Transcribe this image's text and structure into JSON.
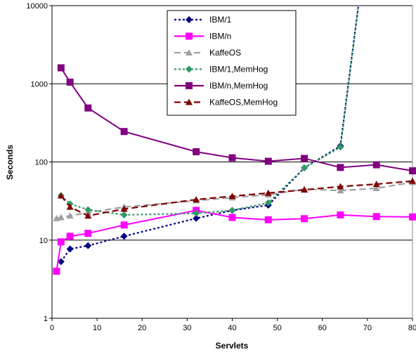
{
  "chart_data": {
    "type": "line",
    "xlabel": "Servlets",
    "ylabel": "Seconds",
    "xlim": [
      0,
      80
    ],
    "ylim": [
      1,
      10000
    ],
    "yscale": "log",
    "grid": "horizontal",
    "legend_position": "top-center",
    "x_ticks": [
      "0",
      "10",
      "20",
      "30",
      "40",
      "50",
      "60",
      "70",
      "80"
    ],
    "y_ticks": [
      "1",
      "10",
      "100",
      "1000",
      "10000"
    ],
    "y_tick_values": [
      1,
      10,
      100,
      1000,
      10000
    ],
    "x_tick_values": [
      0,
      10,
      20,
      30,
      40,
      50,
      60,
      70,
      80
    ],
    "series": [
      {
        "name": "IBM/1",
        "color": "#000080",
        "marker": "diamond",
        "dash": "dotted",
        "x": [
          2,
          4,
          8,
          16,
          32,
          40,
          48,
          56,
          64,
          68
        ],
        "y": [
          5.3,
          7.7,
          8.5,
          11.2,
          19,
          24,
          28,
          84,
          160,
          10000
        ]
      },
      {
        "name": "IBM/n",
        "color": "#ff00ff",
        "marker": "square",
        "dash": "solid",
        "x": [
          1,
          2,
          4,
          8,
          16,
          32,
          40,
          48,
          56,
          64,
          72,
          80
        ],
        "y": [
          4,
          9.5,
          11.2,
          12.2,
          15.6,
          24,
          19.5,
          18.2,
          18.8,
          21,
          20,
          19.8
        ]
      },
      {
        "name": "KaffeOS",
        "color": "#a0a0a0",
        "marker": "triangle",
        "dash": "dashed",
        "x": [
          1,
          2,
          4,
          8,
          16,
          32,
          40,
          48,
          56,
          64,
          72,
          80
        ],
        "y": [
          19,
          19.5,
          20.5,
          22.5,
          26.5,
          32,
          35,
          38,
          45,
          43,
          46,
          55
        ]
      },
      {
        "name": "IBM/1,MemHog",
        "color": "#339966",
        "marker": "diamond",
        "dash": "dotted",
        "x": [
          2,
          4,
          8,
          16,
          32,
          40,
          48,
          56,
          64,
          68
        ],
        "y": [
          37,
          29,
          24.5,
          21,
          22,
          24,
          30,
          84,
          155,
          10000
        ]
      },
      {
        "name": "IBM/n,MemHog",
        "color": "#800080",
        "marker": "square",
        "dash": "solid",
        "x": [
          2,
          4,
          8,
          16,
          32,
          40,
          48,
          56,
          64,
          72,
          80
        ],
        "y": [
          1600,
          1050,
          490,
          245,
          135,
          113,
          102,
          111,
          85,
          92,
          77
        ]
      },
      {
        "name": "KaffeOS,MemHog",
        "color": "#800000",
        "marker": "triangle",
        "dash": "dashed",
        "x": [
          2,
          4,
          8,
          16,
          32,
          40,
          48,
          56,
          64,
          72,
          80
        ],
        "y": [
          37,
          26.5,
          20.5,
          25,
          33,
          36.5,
          40,
          44,
          48.5,
          52,
          57
        ]
      }
    ]
  }
}
